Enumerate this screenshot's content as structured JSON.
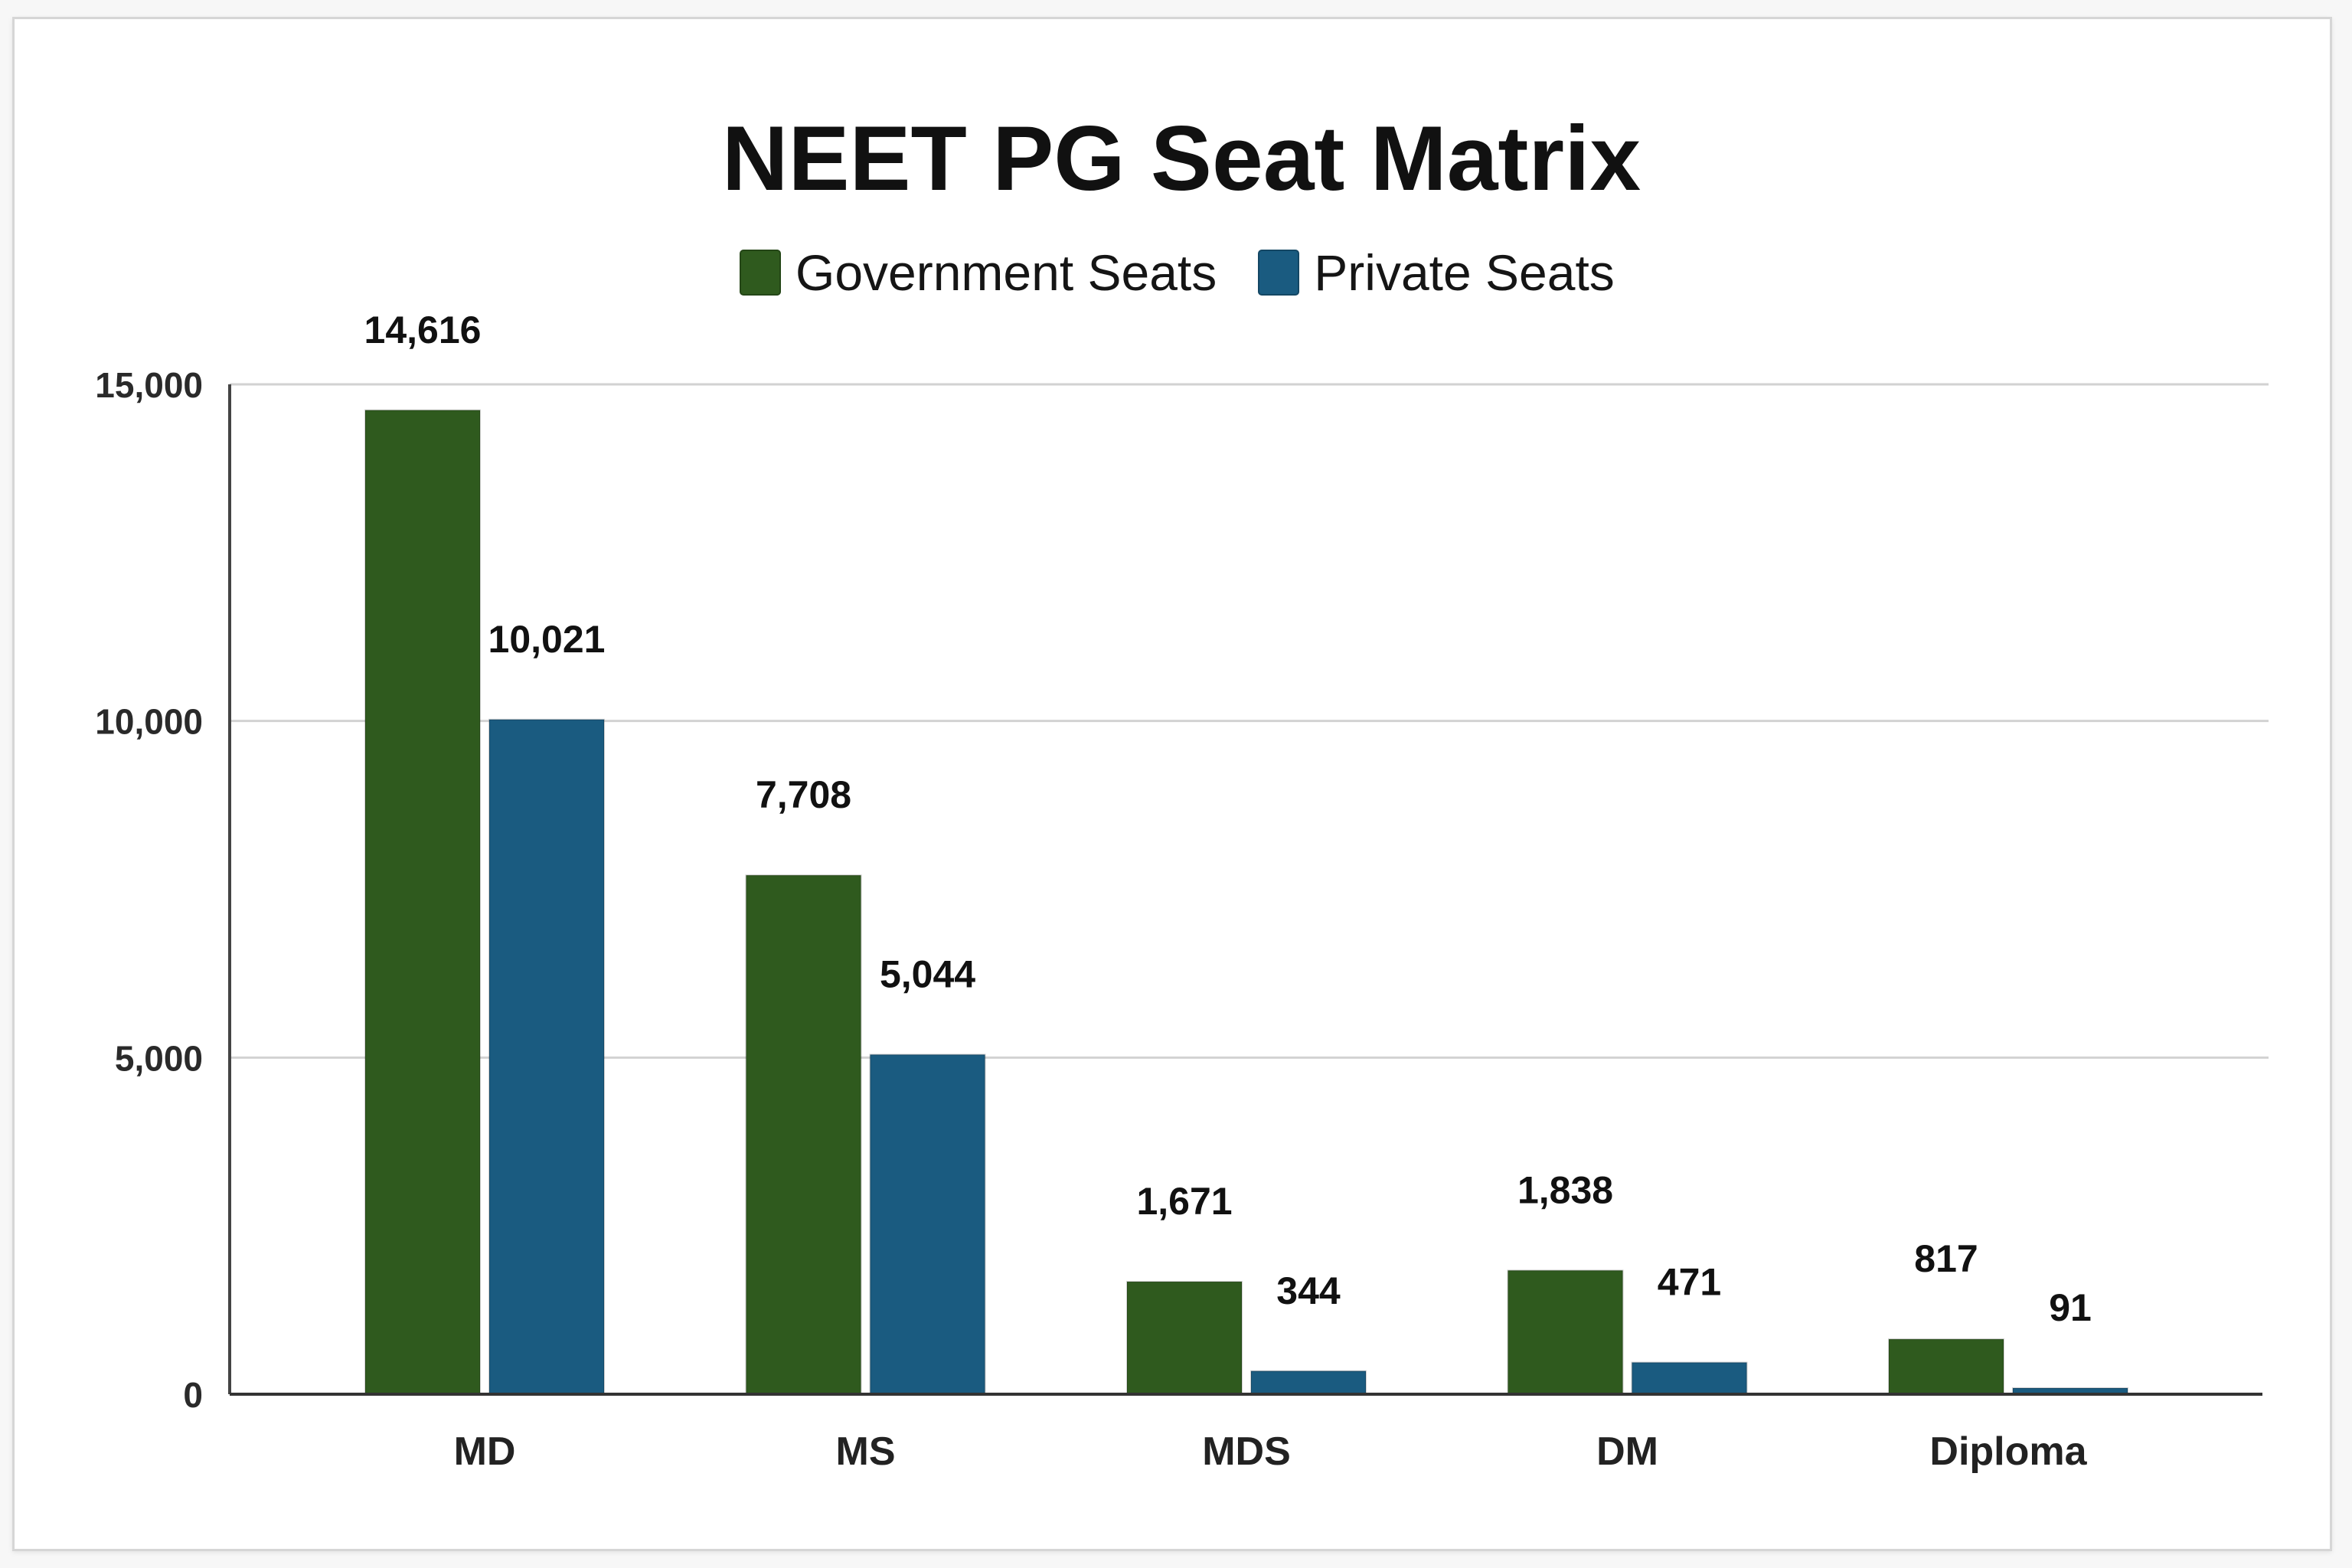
{
  "chart_data": {
    "type": "bar",
    "title": "NEET PG Seat Matrix",
    "categories": [
      "MD",
      "MS",
      "MDS",
      "DM",
      "Diploma"
    ],
    "series": [
      {
        "name": "Government Seats",
        "color": "#2f5a1e",
        "values": [
          14616,
          7708,
          1671,
          1838,
          817
        ],
        "data_labels": [
          "14,616",
          "7,708",
          "1,671",
          "1,838",
          "817"
        ]
      },
      {
        "name": "Private Seats",
        "color": "#1a5b80",
        "values": [
          10021,
          5044,
          344,
          471,
          91
        ],
        "data_labels": [
          "10,021",
          "5,044",
          "344",
          "471",
          "91"
        ]
      }
    ],
    "ylim": [
      0,
      15000
    ],
    "yticks": [
      0,
      5000,
      10000,
      15000
    ],
    "ytick_labels": [
      "0",
      "5,000",
      "10,000",
      "15,000"
    ],
    "grid": true,
    "legend_position": "top-center"
  }
}
